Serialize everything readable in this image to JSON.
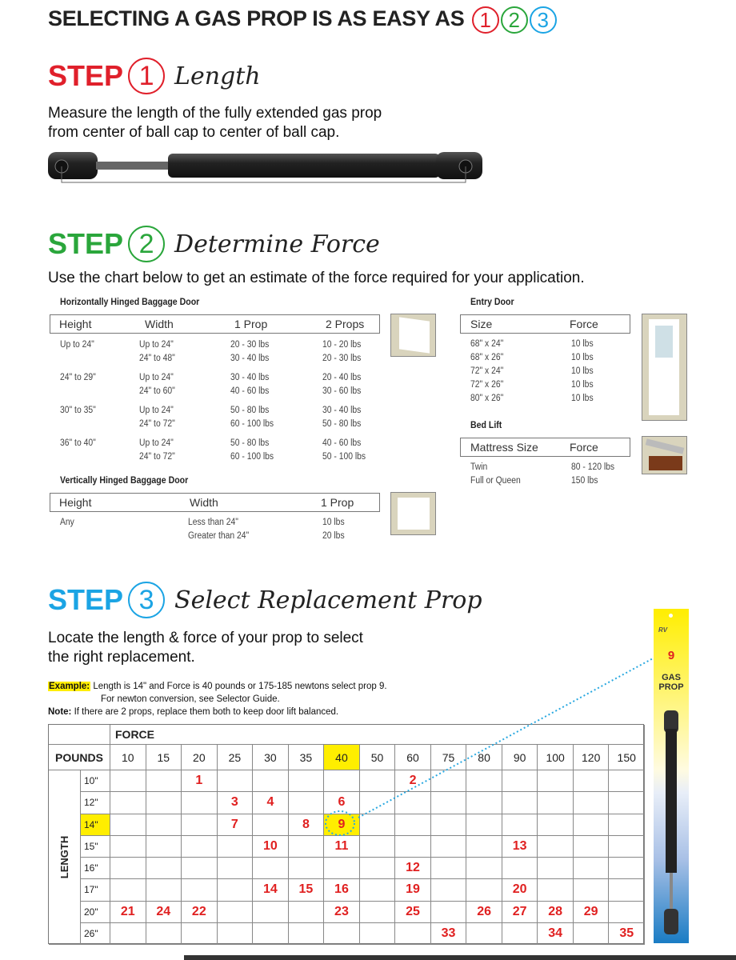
{
  "headline": {
    "text": "SELECTING A GAS PROP IS AS EASY AS",
    "numbers": [
      "1",
      "2",
      "3"
    ]
  },
  "colors": {
    "step1": "#e0202b",
    "step2": "#2aa63b",
    "step3": "#1ba4e4",
    "highlight": "#ffee00",
    "prop_number": "#e02020"
  },
  "step1": {
    "label": "STEP",
    "number": "1",
    "title": "Length",
    "text_line1": "Measure the length of the fully extended gas prop",
    "text_line2": "from center of ball cap to center of ball cap."
  },
  "step2": {
    "label": "STEP",
    "number": "2",
    "title": "Determine Force",
    "text": "Use the chart below to get an estimate of the force required for your application.",
    "horizontal": {
      "title": "Horizontally Hinged Baggage Door",
      "headers": [
        "Height",
        "Width",
        "1 Prop",
        "2 Props"
      ],
      "rows": [
        [
          "Up to 24\"",
          "Up to 24\"",
          "20 - 30 lbs",
          "10 - 20 lbs"
        ],
        [
          "",
          "24\" to 48\"",
          "30 - 40 lbs",
          "20 - 30 lbs"
        ],
        [
          "24\" to 29\"",
          "Up to 24\"",
          "30 - 40 lbs",
          "20 - 40 lbs"
        ],
        [
          "",
          "24\" to 60\"",
          "40 - 60 lbs",
          "30 - 60 lbs"
        ],
        [
          "30\" to 35\"",
          "Up to 24\"",
          "50 - 80 lbs",
          "30 - 40 lbs"
        ],
        [
          "",
          "24\" to 72\"",
          "60 - 100 lbs",
          "50 - 80 lbs"
        ],
        [
          "36\" to 40\"",
          "Up to 24\"",
          "50 - 80 lbs",
          "40 - 60 lbs"
        ],
        [
          "",
          "24\" to 72\"",
          "60 - 100 lbs",
          "50 - 100 lbs"
        ]
      ]
    },
    "vertical": {
      "title": "Vertically Hinged Baggage Door",
      "headers": [
        "Height",
        "Width",
        "1 Prop"
      ],
      "rows": [
        [
          "Any",
          "Less than 24\"",
          "10 lbs"
        ],
        [
          "",
          "Greater than 24\"",
          "20 lbs"
        ]
      ]
    },
    "entry": {
      "title": "Entry Door",
      "headers": [
        "Size",
        "Force"
      ],
      "rows": [
        [
          "68\" x 24\"",
          "10 lbs"
        ],
        [
          "68\" x 26\"",
          "10 lbs"
        ],
        [
          "72\" x 24\"",
          "10 lbs"
        ],
        [
          "72\" x 26\"",
          "10 lbs"
        ],
        [
          "80\" x 26\"",
          "10 lbs"
        ]
      ]
    },
    "bed": {
      "title": "Bed Lift",
      "headers": [
        "Mattress Size",
        "Force"
      ],
      "rows": [
        [
          "Twin",
          "80 - 120 lbs"
        ],
        [
          "Full or Queen",
          "150 lbs"
        ]
      ]
    }
  },
  "step3": {
    "label": "STEP",
    "number": "3",
    "title": "Select Replacement Prop",
    "text_line1": "Locate the length & force of your prop to select",
    "text_line2": "the right replacement.",
    "example_label": "Example:",
    "example_text": "Length is 14\" and Force is 40 pounds or 175-185 newtons select prop 9.",
    "example_text2": "For newton conversion, see Selector Guide.",
    "note_label": "Note:",
    "note_text": "If there are 2 props, replace them both to keep door lift balanced.",
    "grid": {
      "force_label": "FORCE",
      "pounds_label": "POUNDS",
      "length_label": "LENGTH",
      "forces": [
        "10",
        "15",
        "20",
        "25",
        "30",
        "35",
        "40",
        "50",
        "60",
        "75",
        "80",
        "90",
        "100",
        "120",
        "150"
      ],
      "highlight_force": "40",
      "highlight_length": "14\"",
      "selected": "9",
      "rows": [
        {
          "length": "10\"",
          "cells": [
            "",
            "",
            "1",
            "",
            "",
            "",
            "",
            "",
            "2",
            "",
            "",
            "",
            "",
            "",
            ""
          ]
        },
        {
          "length": "12\"",
          "cells": [
            "",
            "",
            "",
            "3",
            "4",
            "",
            "6",
            "",
            "",
            "",
            "",
            "",
            "",
            "",
            ""
          ]
        },
        {
          "length": "14\"",
          "cells": [
            "",
            "",
            "",
            "7",
            "",
            "8",
            "9",
            "",
            "",
            "",
            "",
            "",
            "",
            "",
            ""
          ]
        },
        {
          "length": "15\"",
          "cells": [
            "",
            "",
            "",
            "",
            "10",
            "",
            "11",
            "",
            "",
            "",
            "",
            "13",
            "",
            "",
            ""
          ]
        },
        {
          "length": "16\"",
          "cells": [
            "",
            "",
            "",
            "",
            "",
            "",
            "",
            "",
            "12",
            "",
            "",
            "",
            "",
            "",
            ""
          ]
        },
        {
          "length": "17\"",
          "cells": [
            "",
            "",
            "",
            "",
            "14",
            "15",
            "16",
            "",
            "19",
            "",
            "",
            "20",
            "",
            "",
            ""
          ]
        },
        {
          "length": "20\"",
          "cells": [
            "21",
            "24",
            "22",
            "",
            "",
            "",
            "23",
            "",
            "25",
            "",
            "26",
            "27",
            "28",
            "29",
            ""
          ]
        },
        {
          "length": "26\"",
          "cells": [
            "",
            "",
            "",
            "",
            "",
            "",
            "",
            "",
            "",
            "33",
            "",
            "",
            "34",
            "",
            "35"
          ]
        }
      ]
    },
    "package": {
      "number": "9",
      "label_line1": "GAS",
      "label_line2": "PROP",
      "brand": "RV"
    }
  }
}
